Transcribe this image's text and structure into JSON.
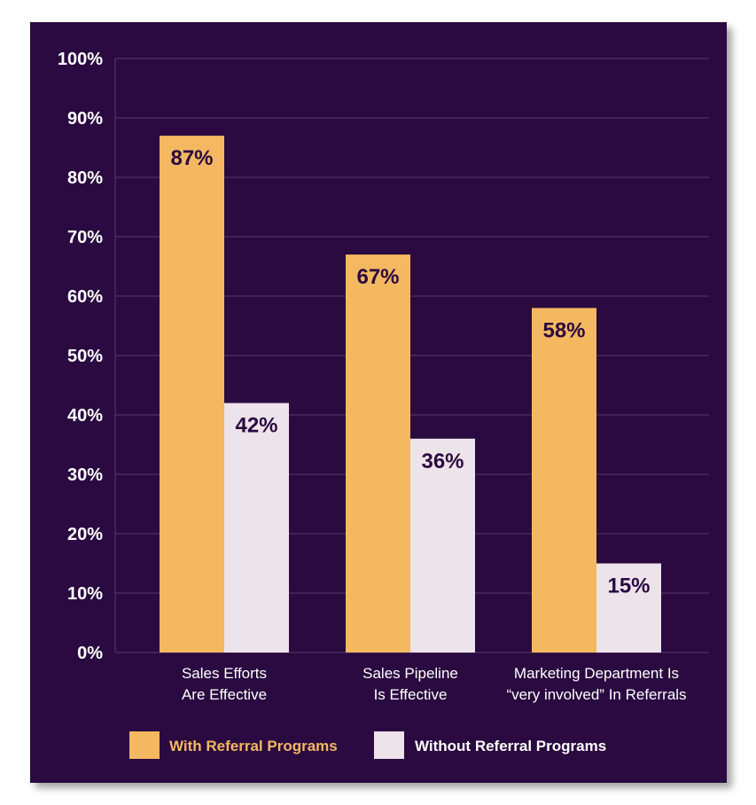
{
  "colors": {
    "background": "#2a0a40",
    "with_series": "#f4b860",
    "without_series": "#ede3ea",
    "gridline": "#5a3a6a",
    "axis_text": "#ffffff"
  },
  "chart_data": {
    "type": "bar",
    "title": "",
    "xlabel": "",
    "ylabel": "",
    "ylim": [
      0,
      100
    ],
    "yticks": [
      "0%",
      "10%",
      "20%",
      "30%",
      "40%",
      "50%",
      "60%",
      "70%",
      "80%",
      "90%",
      "100%"
    ],
    "grid": true,
    "legend_position": "bottom",
    "categories": [
      [
        "Sales Efforts",
        "Are Effective"
      ],
      [
        "Sales Pipeline",
        "Is Effective"
      ],
      [
        "Marketing Department Is",
        "“very involved” In Referrals"
      ]
    ],
    "series": [
      {
        "name": "With Referral Programs",
        "values": [
          87,
          67,
          58
        ],
        "labels": [
          "87%",
          "67%",
          "58%"
        ]
      },
      {
        "name": "Without Referral Programs",
        "values": [
          42,
          36,
          15
        ],
        "labels": [
          "42%",
          "36%",
          "15%"
        ]
      }
    ]
  }
}
